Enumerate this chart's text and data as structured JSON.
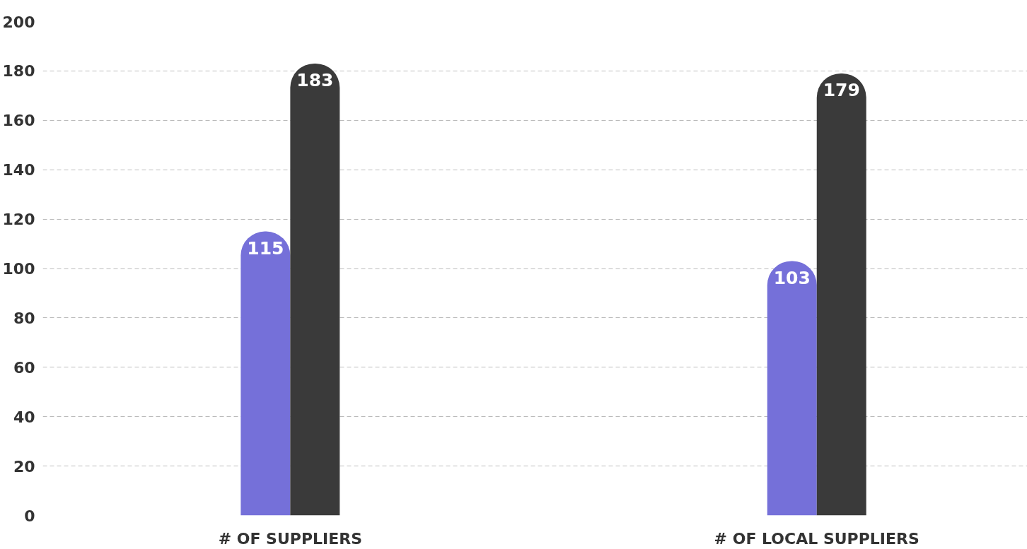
{
  "chart_data": {
    "type": "bar",
    "categories": [
      "# OF SUPPLIERS",
      "# OF LOCAL SUPPLIERS"
    ],
    "series": [
      {
        "color": "#7570d9",
        "values": [
          115,
          103
        ]
      },
      {
        "color": "#3a3a3a",
        "values": [
          183,
          179
        ]
      }
    ],
    "ylim": [
      0,
      200
    ],
    "yticks": [
      0,
      20,
      40,
      60,
      80,
      100,
      120,
      140,
      160,
      180,
      200
    ],
    "grid": "y",
    "data_labels": true
  }
}
